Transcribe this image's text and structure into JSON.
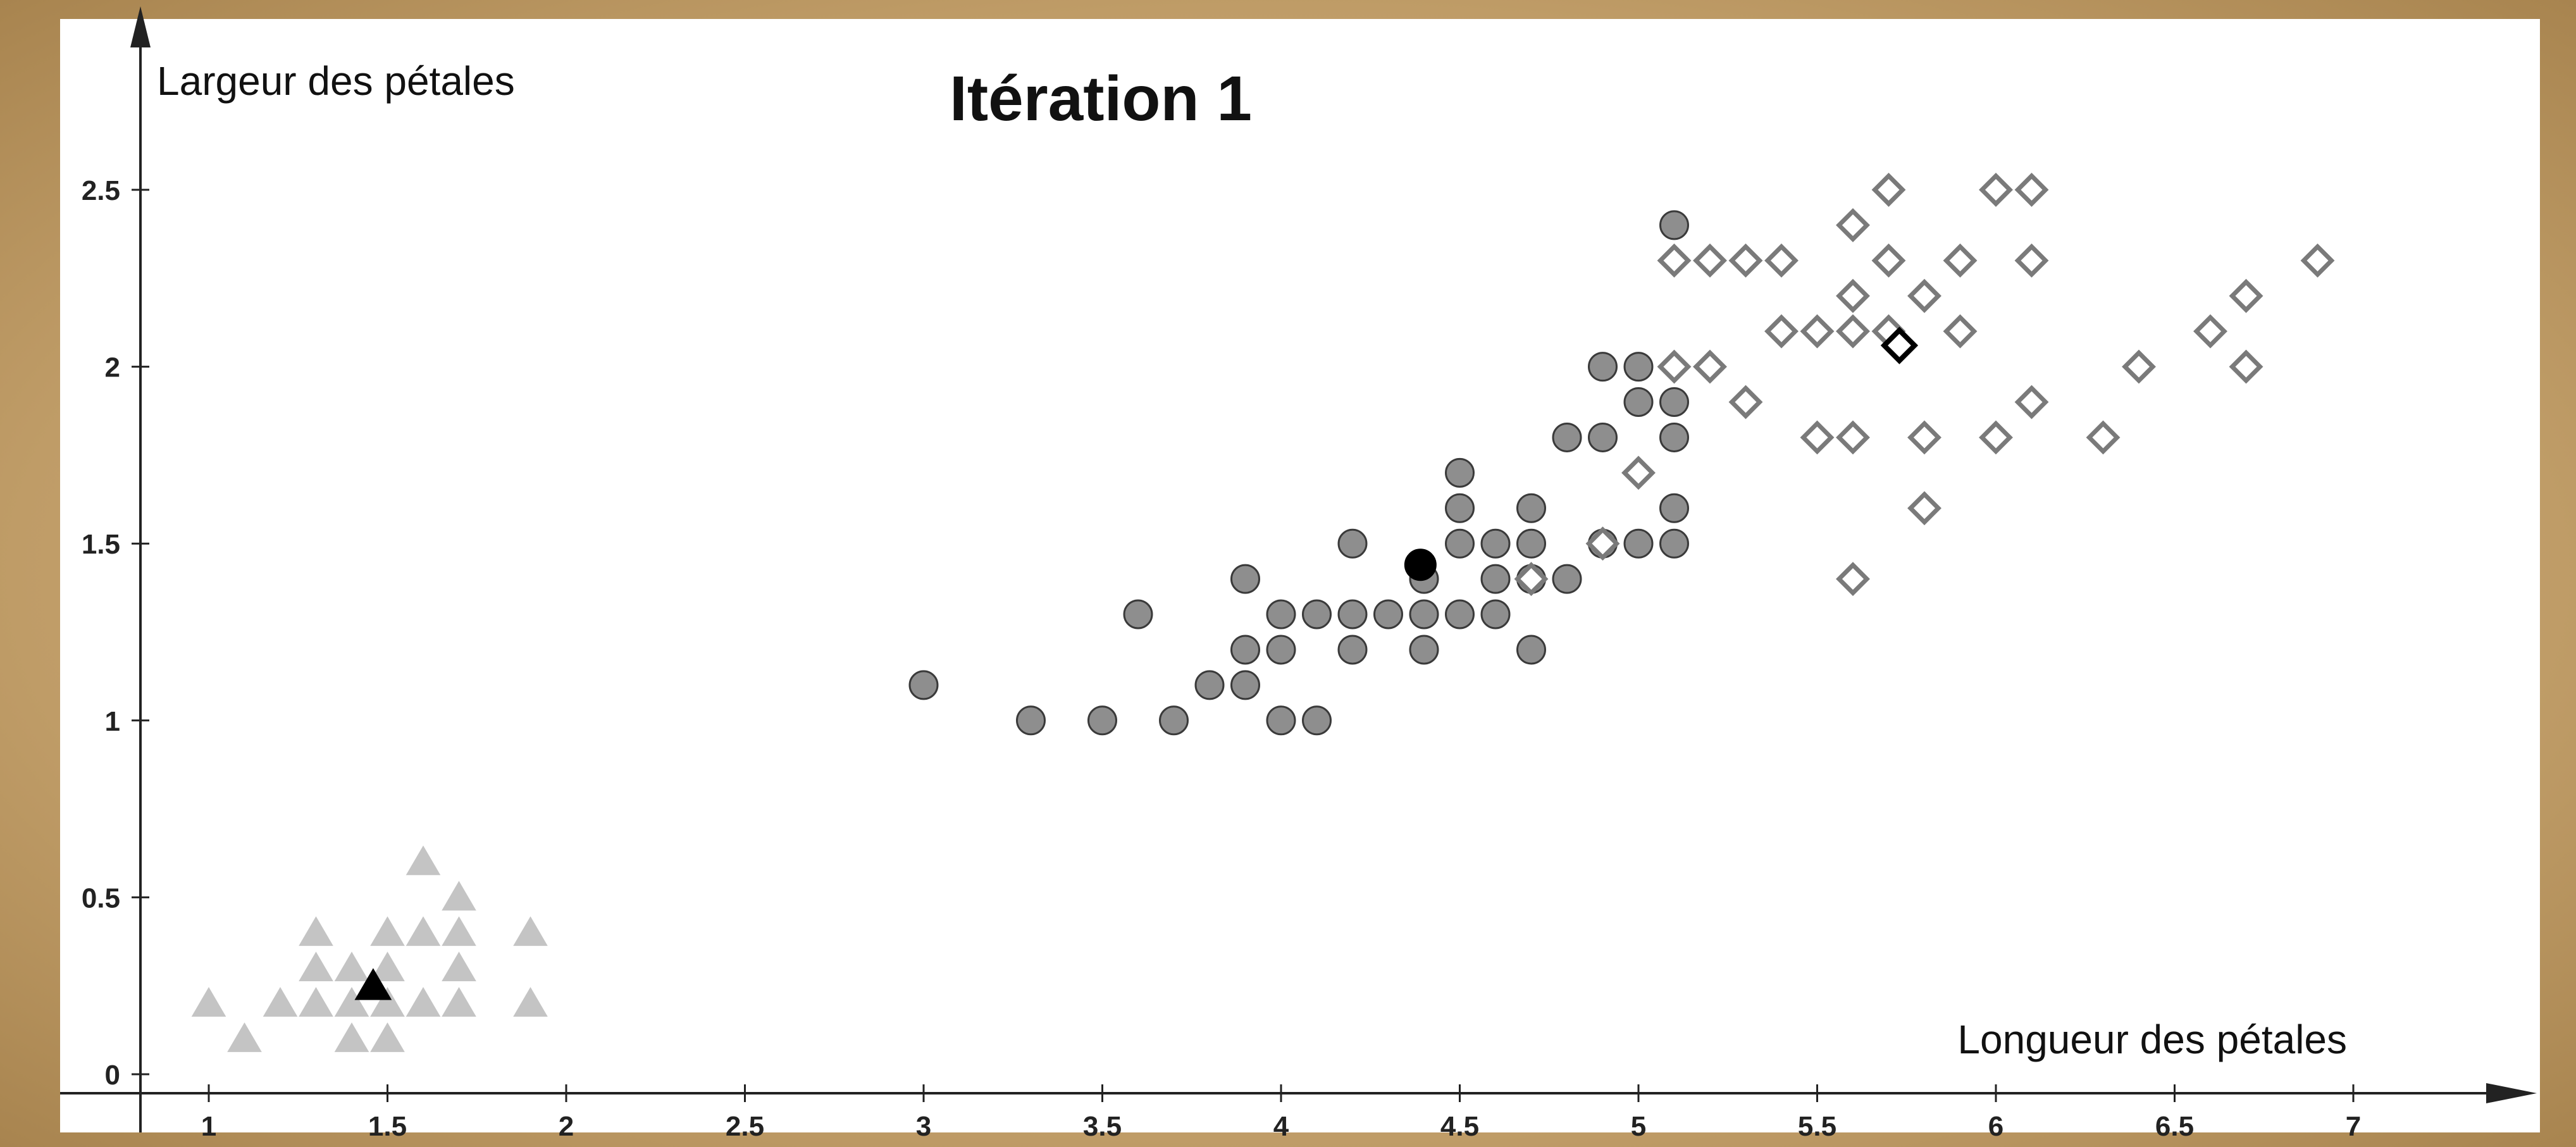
{
  "chart_data": {
    "type": "scatter",
    "title": "Itération 1",
    "xlabel": "Longueur des pétales",
    "ylabel": "Largeur des pétales",
    "xlim": [
      0.6,
      7.3
    ],
    "ylim": [
      -0.05,
      2.95
    ],
    "x_ticks": [
      1,
      1.5,
      2,
      2.5,
      3,
      3.5,
      4,
      4.5,
      5,
      5.5,
      6,
      6.5,
      7
    ],
    "x_tick_labels": [
      "1",
      "1.5",
      "2",
      "2.5",
      "3",
      "3.5",
      "4",
      "4.5",
      "5",
      "5.5",
      "6",
      "6.5",
      "7"
    ],
    "y_ticks": [
      0,
      0.5,
      1,
      1.5,
      2,
      2.5
    ],
    "y_tick_labels": [
      "0",
      "0.5",
      "1",
      "1.5",
      "2",
      "2.5"
    ],
    "grid": false,
    "colors": {
      "triangle_points": "#c4c4c4",
      "circle_points": "#8e8e8e",
      "diamond_points": "#7a7a7a",
      "centroid": "#000000",
      "axis": "#222222"
    },
    "series": [
      {
        "marker": "triangle",
        "points": [
          [
            1.0,
            0.2
          ],
          [
            1.1,
            0.1
          ],
          [
            1.2,
            0.2
          ],
          [
            1.3,
            0.4
          ],
          [
            1.3,
            0.3
          ],
          [
            1.3,
            0.2
          ],
          [
            1.4,
            0.3
          ],
          [
            1.4,
            0.2
          ],
          [
            1.4,
            0.1
          ],
          [
            1.5,
            0.4
          ],
          [
            1.5,
            0.3
          ],
          [
            1.5,
            0.2
          ],
          [
            1.5,
            0.1
          ],
          [
            1.6,
            0.6
          ],
          [
            1.6,
            0.4
          ],
          [
            1.6,
            0.2
          ],
          [
            1.7,
            0.5
          ],
          [
            1.7,
            0.4
          ],
          [
            1.7,
            0.3
          ],
          [
            1.7,
            0.2
          ],
          [
            1.9,
            0.4
          ],
          [
            1.9,
            0.2
          ]
        ]
      },
      {
        "marker": "circle",
        "points": [
          [
            3.0,
            1.1
          ],
          [
            3.3,
            1.0
          ],
          [
            3.5,
            1.0
          ],
          [
            3.6,
            1.3
          ],
          [
            3.7,
            1.0
          ],
          [
            3.8,
            1.1
          ],
          [
            3.9,
            1.4
          ],
          [
            3.9,
            1.2
          ],
          [
            3.9,
            1.1
          ],
          [
            4.0,
            1.3
          ],
          [
            4.0,
            1.2
          ],
          [
            4.0,
            1.0
          ],
          [
            4.1,
            1.3
          ],
          [
            4.1,
            1.0
          ],
          [
            4.2,
            1.5
          ],
          [
            4.2,
            1.3
          ],
          [
            4.2,
            1.2
          ],
          [
            4.3,
            1.3
          ],
          [
            4.4,
            1.4
          ],
          [
            4.4,
            1.3
          ],
          [
            4.4,
            1.2
          ],
          [
            4.5,
            1.7
          ],
          [
            4.5,
            1.6
          ],
          [
            4.5,
            1.5
          ],
          [
            4.5,
            1.3
          ],
          [
            4.6,
            1.5
          ],
          [
            4.6,
            1.4
          ],
          [
            4.6,
            1.3
          ],
          [
            4.7,
            1.6
          ],
          [
            4.7,
            1.5
          ],
          [
            4.7,
            1.4
          ],
          [
            4.7,
            1.2
          ],
          [
            4.8,
            1.8
          ],
          [
            4.8,
            1.4
          ],
          [
            4.9,
            2.0
          ],
          [
            4.9,
            1.8
          ],
          [
            4.9,
            1.5
          ],
          [
            5.0,
            2.0
          ],
          [
            5.0,
            1.9
          ],
          [
            5.0,
            1.5
          ],
          [
            5.1,
            2.4
          ],
          [
            5.1,
            1.9
          ],
          [
            5.1,
            1.8
          ],
          [
            5.1,
            1.6
          ],
          [
            5.1,
            1.5
          ]
        ]
      },
      {
        "marker": "diamond",
        "points": [
          [
            4.7,
            1.4
          ],
          [
            4.9,
            1.5
          ],
          [
            5.0,
            1.7
          ],
          [
            5.1,
            2.3
          ],
          [
            5.1,
            2.0
          ],
          [
            5.2,
            2.3
          ],
          [
            5.2,
            2.0
          ],
          [
            5.3,
            2.3
          ],
          [
            5.3,
            1.9
          ],
          [
            5.4,
            2.3
          ],
          [
            5.4,
            2.1
          ],
          [
            5.5,
            2.1
          ],
          [
            5.5,
            1.8
          ],
          [
            5.6,
            2.4
          ],
          [
            5.6,
            2.2
          ],
          [
            5.6,
            2.1
          ],
          [
            5.6,
            1.8
          ],
          [
            5.6,
            1.4
          ],
          [
            5.7,
            2.5
          ],
          [
            5.7,
            2.3
          ],
          [
            5.7,
            2.1
          ],
          [
            5.8,
            2.2
          ],
          [
            5.8,
            1.8
          ],
          [
            5.8,
            1.6
          ],
          [
            5.9,
            2.3
          ],
          [
            5.9,
            2.1
          ],
          [
            6.0,
            2.5
          ],
          [
            6.0,
            1.8
          ],
          [
            6.1,
            2.5
          ],
          [
            6.1,
            2.3
          ],
          [
            6.1,
            1.9
          ],
          [
            6.3,
            1.8
          ],
          [
            6.4,
            2.0
          ],
          [
            6.6,
            2.1
          ],
          [
            6.7,
            2.2
          ],
          [
            6.7,
            2.0
          ],
          [
            6.9,
            2.3
          ]
        ]
      }
    ],
    "centroids": [
      {
        "marker": "triangle",
        "x": 1.46,
        "y": 0.25
      },
      {
        "marker": "circle",
        "x": 4.39,
        "y": 1.44
      },
      {
        "marker": "diamond",
        "x": 5.73,
        "y": 2.06
      }
    ]
  }
}
